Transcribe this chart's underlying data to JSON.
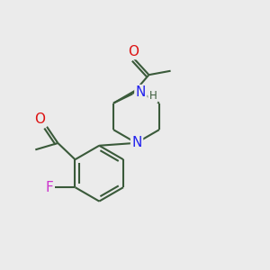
{
  "bg_color": "#ebebeb",
  "bond_color": "#3a5a3a",
  "bond_width": 1.5,
  "atom_colors": {
    "O": "#dd1111",
    "N": "#2222ee",
    "F": "#cc33cc",
    "C": "#3a5a3a",
    "H": "#3a5a3a"
  },
  "font_size": 10,
  "font_size_h": 8.5
}
